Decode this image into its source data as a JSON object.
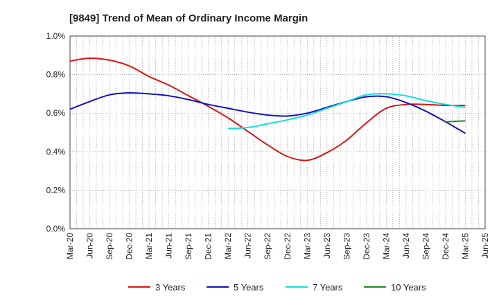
{
  "chart_data": {
    "type": "line",
    "title": "[9849]  Trend of Mean of Ordinary Income Margin",
    "xlabel": "",
    "ylabel": "",
    "x_ticks": [
      "Mar-20",
      "Jun-20",
      "Sep-20",
      "Dec-20",
      "Mar-21",
      "Jun-21",
      "Sep-21",
      "Dec-21",
      "Mar-22",
      "Jun-22",
      "Sep-22",
      "Dec-22",
      "Mar-23",
      "Jun-23",
      "Sep-23",
      "Dec-23",
      "Mar-24",
      "Jun-24",
      "Sep-24",
      "Dec-24",
      "Mar-25",
      "Jun-25"
    ],
    "y_ticks": [
      "0.0%",
      "0.2%",
      "0.4%",
      "0.6%",
      "0.8%",
      "1.0%"
    ],
    "ylim": [
      0,
      1.0
    ],
    "grid": true,
    "legend_position": "bottom",
    "series": [
      {
        "name": "3 Years",
        "color": "#dd1111",
        "x": [
          "Mar-20",
          "Jun-20",
          "Sep-20",
          "Dec-20",
          "Mar-21",
          "Jun-21",
          "Sep-21",
          "Dec-21",
          "Mar-22",
          "Jun-22",
          "Sep-22",
          "Dec-22",
          "Mar-23",
          "Jun-23",
          "Sep-23",
          "Dec-23",
          "Mar-24",
          "Jun-24",
          "Sep-24",
          "Dec-24",
          "Mar-25"
        ],
        "values": [
          0.87,
          0.885,
          0.875,
          0.845,
          0.79,
          0.745,
          0.69,
          0.635,
          0.575,
          0.505,
          0.435,
          0.375,
          0.355,
          0.395,
          0.46,
          0.55,
          0.625,
          0.645,
          0.645,
          0.64,
          0.64
        ]
      },
      {
        "name": "5 Years",
        "color": "#1111bb",
        "x": [
          "Mar-20",
          "Jun-20",
          "Sep-20",
          "Dec-20",
          "Mar-21",
          "Jun-21",
          "Sep-21",
          "Dec-21",
          "Mar-22",
          "Jun-22",
          "Sep-22",
          "Dec-22",
          "Mar-23",
          "Jun-23",
          "Sep-23",
          "Dec-23",
          "Mar-24",
          "Jun-24",
          "Sep-24",
          "Dec-24",
          "Mar-25"
        ],
        "values": [
          0.62,
          0.66,
          0.695,
          0.705,
          0.7,
          0.69,
          0.67,
          0.645,
          0.625,
          0.605,
          0.59,
          0.585,
          0.6,
          0.63,
          0.66,
          0.685,
          0.685,
          0.655,
          0.61,
          0.555,
          0.495
        ]
      },
      {
        "name": "7 Years",
        "color": "#11dddd",
        "x": [
          "Mar-22",
          "Jun-22",
          "Sep-22",
          "Dec-22",
          "Mar-23",
          "Jun-23",
          "Sep-23",
          "Dec-23",
          "Mar-24",
          "Jun-24",
          "Sep-24",
          "Dec-24",
          "Mar-25"
        ],
        "values": [
          0.52,
          0.525,
          0.545,
          0.565,
          0.59,
          0.625,
          0.66,
          0.695,
          0.7,
          0.69,
          0.665,
          0.645,
          0.63
        ]
      },
      {
        "name": "10 Years",
        "color": "#228822",
        "x": [
          "Dec-24",
          "Mar-25"
        ],
        "values": [
          0.555,
          0.56
        ]
      }
    ]
  }
}
